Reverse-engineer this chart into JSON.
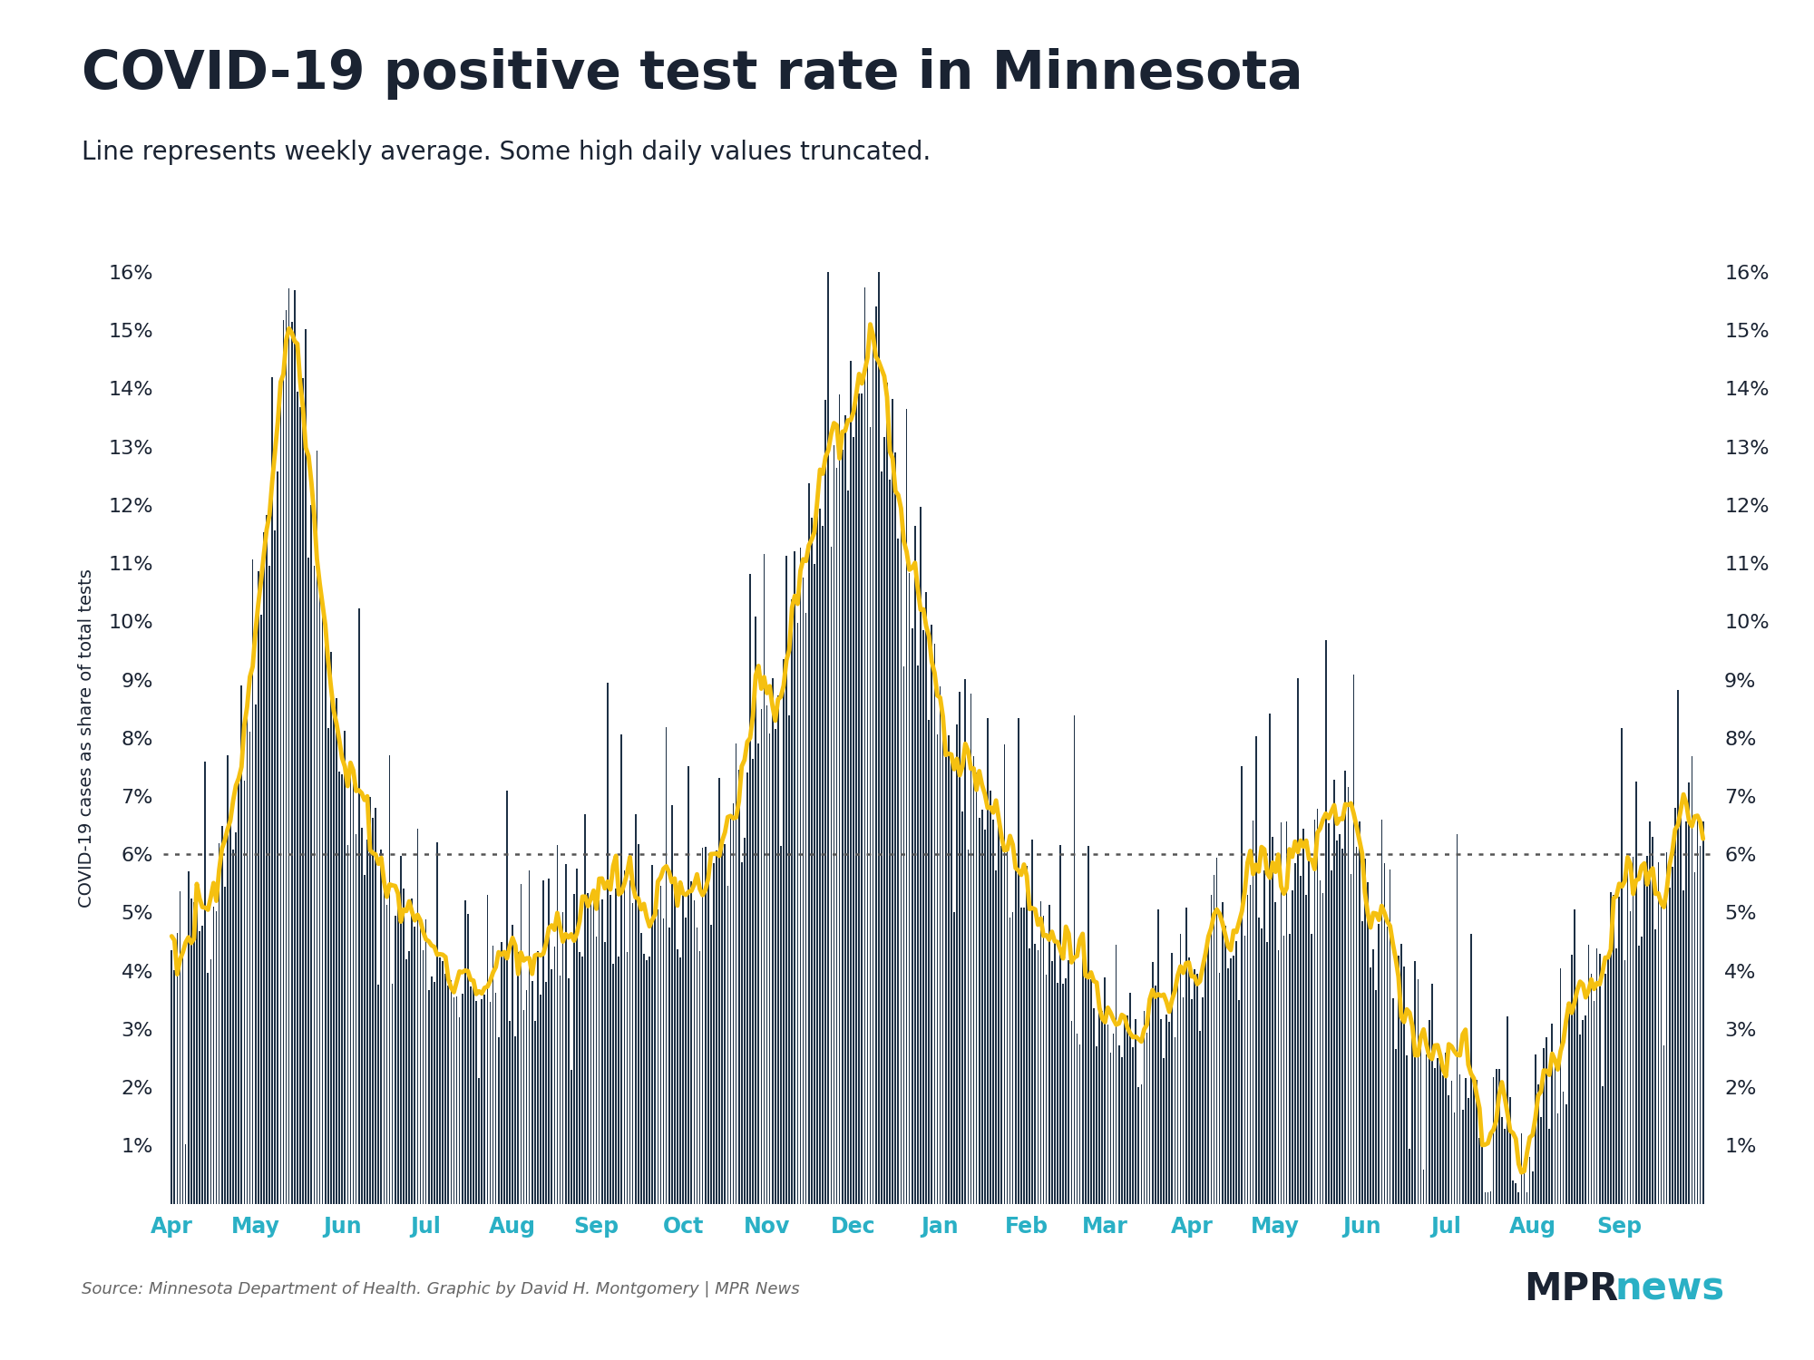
{
  "title": "COVID-19 positive test rate in Minnesota",
  "subtitle": "Line represents weekly average. Some high daily values truncated.",
  "ylabel": "COVID-19 cases as share of total tests",
  "source_text": "Source: Minnesota Department of Health. Graphic by David H. Montgomery | MPR News",
  "title_color": "#1a2332",
  "subtitle_color": "#1a2332",
  "bar_color": "#1d3045",
  "line_color": "#f5c010",
  "dotted_line_y": 6.0,
  "ylim_max": 16,
  "yticks": [
    1,
    2,
    3,
    4,
    5,
    6,
    7,
    8,
    9,
    10,
    11,
    12,
    13,
    14,
    15,
    16
  ],
  "month_labels": [
    "Apr",
    "May",
    "Jun",
    "Jul",
    "Aug",
    "Sep",
    "Oct",
    "Nov",
    "Dec",
    "Jan",
    "Feb",
    "Mar",
    "Apr",
    "May",
    "Jun",
    "Jul",
    "Aug",
    "Sep"
  ],
  "month_day_positions": [
    0,
    30,
    61,
    91,
    122,
    152,
    183,
    213,
    244,
    275,
    306,
    334,
    365,
    395,
    426,
    456,
    487,
    518
  ],
  "teal_color": "#2ab0c5",
  "dark_color": "#1a2332",
  "background_color": "#ffffff",
  "n_days": 549
}
